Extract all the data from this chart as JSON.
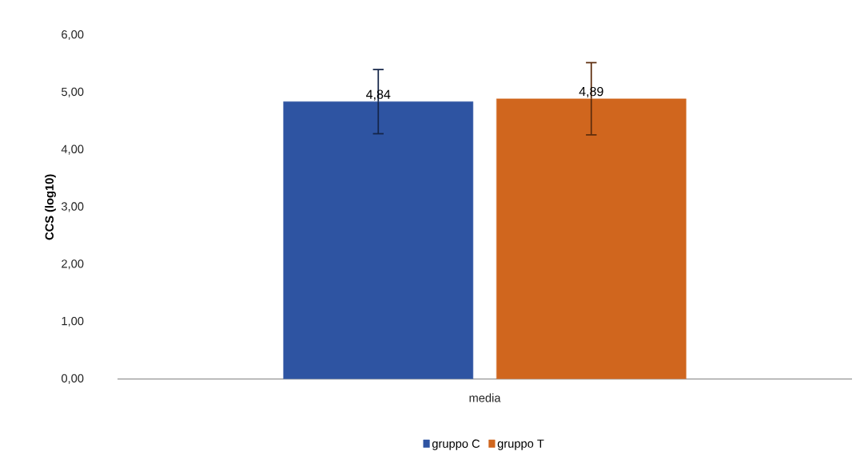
{
  "chart_data": {
    "type": "bar",
    "ylabel": "CCS (log10)",
    "categories": [
      "media"
    ],
    "series": [
      {
        "name": "gruppo C",
        "color": "#2e54a2",
        "values": [
          4.84
        ],
        "errors": [
          0.56
        ],
        "value_labels": [
          "4,84"
        ]
      },
      {
        "name": "gruppo T",
        "color": "#d0661e",
        "values": [
          4.89
        ],
        "errors": [
          0.63
        ],
        "value_labels": [
          "4,89"
        ]
      }
    ],
    "ylim": [
      0,
      6
    ],
    "yticks": [
      {
        "value": 0,
        "label": "0,00"
      },
      {
        "value": 1,
        "label": "1,00"
      },
      {
        "value": 2,
        "label": "2,00"
      },
      {
        "value": 3,
        "label": "3,00"
      },
      {
        "value": 4,
        "label": "4,00"
      },
      {
        "value": 5,
        "label": "5,00"
      },
      {
        "value": 6,
        "label": "6,00"
      }
    ],
    "grid": false,
    "legend": "bottom"
  }
}
